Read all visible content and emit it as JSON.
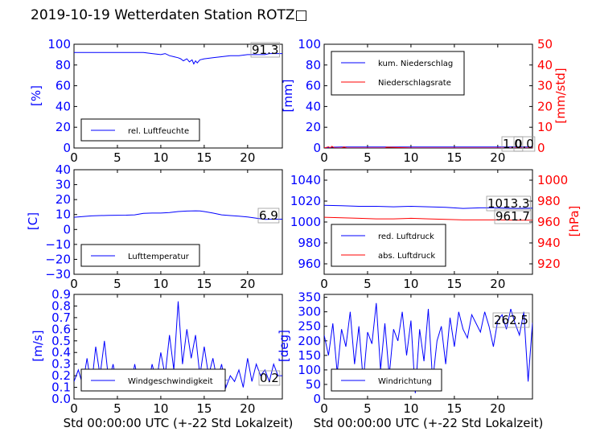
{
  "title": "2019-10-19 Wetterdaten Station ROTZ□",
  "colors": {
    "blue": "#0000ff",
    "red": "#ff0000",
    "black": "#000000"
  },
  "chart_data": [
    {
      "type": "line",
      "ylabel": "[%]",
      "xlim": [
        0,
        24
      ],
      "ylim": [
        0,
        100
      ],
      "xticks": [
        "0",
        "5",
        "10",
        "15",
        "20"
      ],
      "yticks": [
        "0",
        "20",
        "40",
        "60",
        "80",
        "100"
      ],
      "value_label": "91.3",
      "legend": "lower-left",
      "series": [
        {
          "name": "rel. Luftfeuchte",
          "color": "#0000ff",
          "x": [
            0,
            2,
            4,
            6,
            8,
            9,
            10,
            10.5,
            11,
            11.5,
            12,
            12.3,
            12.6,
            13,
            13.3,
            13.6,
            13.8,
            14,
            14.2,
            14.5,
            15,
            16,
            17,
            18,
            19,
            20,
            21,
            22,
            22.5,
            23,
            24
          ],
          "y": [
            92,
            92,
            92,
            92,
            92,
            91,
            90,
            91,
            89,
            88,
            87,
            86,
            84,
            86,
            83,
            85,
            81,
            84,
            82,
            85,
            86,
            87,
            88,
            89,
            89,
            90,
            90,
            90,
            91,
            91,
            91
          ]
        }
      ]
    },
    {
      "type": "line",
      "ylabel": "[mm]",
      "y2label": "[mm/std]",
      "xlim": [
        0,
        24
      ],
      "ylim": [
        0,
        100
      ],
      "y2lim": [
        0,
        50
      ],
      "xticks": [
        "0",
        "5",
        "10",
        "15",
        "20"
      ],
      "yticks": [
        "0",
        "20",
        "40",
        "60",
        "80",
        "100"
      ],
      "y2ticks": [
        "0",
        "10",
        "20",
        "30",
        "40",
        "50"
      ],
      "value_labels": [
        "1.0",
        "0.0"
      ],
      "legend": "top-left",
      "series": [
        {
          "name": "kum. Niederschlag",
          "color": "#0000ff",
          "x": [
            0,
            0.5,
            1,
            2,
            4,
            7,
            10,
            15,
            20,
            24
          ],
          "y": [
            0,
            0.5,
            0.8,
            0.9,
            1,
            1,
            1,
            1,
            1,
            1
          ]
        },
        {
          "name": "Niederschlagsrate",
          "color": "#ff0000",
          "x": [
            0,
            0.5,
            0.7,
            0.9,
            1.2,
            2,
            2.3,
            2.6,
            4,
            7,
            7.2,
            10,
            15,
            24
          ],
          "y": [
            0,
            0.6,
            0,
            0.8,
            0,
            0,
            0.5,
            0,
            0,
            0,
            0.4,
            0,
            0,
            0
          ]
        }
      ]
    },
    {
      "type": "line",
      "ylabel": "[C]",
      "xlim": [
        0,
        24
      ],
      "ylim": [
        -30,
        40
      ],
      "xticks": [
        "0",
        "5",
        "10",
        "15",
        "20"
      ],
      "yticks": [
        "−30",
        "−20",
        "−10",
        "0",
        "10",
        "20",
        "30",
        "40"
      ],
      "value_label": "6.9",
      "legend": "lower-left",
      "series": [
        {
          "name": "Lufttemperatur",
          "color": "#0000ff",
          "x": [
            0,
            1,
            2,
            3,
            4,
            5,
            6,
            7,
            8,
            9,
            10,
            11,
            12,
            13,
            14,
            14.5,
            15,
            16,
            17,
            18,
            19,
            20,
            21,
            22,
            23,
            24
          ],
          "y": [
            8.2,
            8.6,
            9.1,
            9.3,
            9.4,
            9.5,
            9.6,
            9.8,
            10.8,
            11,
            11,
            11.3,
            12,
            12.3,
            12.5,
            12.4,
            12,
            11,
            9.8,
            9.3,
            8.9,
            8.4,
            7.6,
            6.7,
            6.9,
            6.9
          ]
        }
      ]
    },
    {
      "type": "line",
      "ylabel": "",
      "y2label": "[hPa]",
      "xlim": [
        0,
        24
      ],
      "ylim": [
        950,
        1050
      ],
      "y2lim": [
        910,
        1010
      ],
      "xticks": [
        "0",
        "5",
        "10",
        "15",
        "20"
      ],
      "yticks": [
        "960",
        "980",
        "1000",
        "1020",
        "1040"
      ],
      "y2ticks": [
        "920",
        "940",
        "960",
        "980",
        "1000"
      ],
      "value_labels": [
        "1013.3",
        "961.7"
      ],
      "legend": "lower-left",
      "series": [
        {
          "name": "red. Luftdruck",
          "color": "#0000ff",
          "x": [
            0,
            2,
            4,
            6,
            8,
            10,
            12,
            14,
            16,
            18,
            20,
            22,
            24
          ],
          "y": [
            1016,
            1015.5,
            1015,
            1015,
            1014.5,
            1015,
            1014.5,
            1014,
            1013,
            1013.5,
            1013.5,
            1013,
            1013.3
          ]
        },
        {
          "name": "abs. Luftdruck",
          "color": "#ff0000",
          "x": [
            0,
            2,
            4,
            6,
            8,
            10,
            12,
            14,
            16,
            18,
            20,
            22,
            24
          ],
          "y": [
            964.5,
            964,
            963.5,
            963,
            963,
            963.5,
            963,
            962.5,
            962,
            962,
            962,
            961.8,
            961.7
          ]
        }
      ]
    },
    {
      "type": "line",
      "ylabel": "[m/s]",
      "xlabel": "Std 00:00:00 UTC (+-22 Std Lokalzeit)",
      "xlim": [
        0,
        24
      ],
      "ylim": [
        0,
        0.9
      ],
      "xticks": [
        "0",
        "5",
        "10",
        "15",
        "20"
      ],
      "yticks": [
        "0.0",
        "0.1",
        "0.2",
        "0.3",
        "0.4",
        "0.5",
        "0.6",
        "0.7",
        "0.8",
        "0.9"
      ],
      "value_label": "0.2",
      "legend": "lower-left",
      "series": [
        {
          "name": "Windgeschwindigkeit",
          "color": "#0000ff",
          "x": [
            0,
            0.5,
            1,
            1.5,
            2,
            2.5,
            3,
            3.5,
            4,
            4.5,
            5,
            5.5,
            6,
            6.5,
            7,
            7.5,
            8,
            8.5,
            9,
            9.5,
            10,
            10.5,
            11,
            11.5,
            12,
            12.5,
            13,
            13.5,
            14,
            14.5,
            15,
            15.5,
            16,
            16.5,
            17,
            17.5,
            18,
            18.5,
            19,
            19.5,
            20,
            20.5,
            21,
            21.5,
            22,
            22.5,
            23,
            23.5,
            24
          ],
          "y": [
            0.15,
            0.25,
            0.12,
            0.35,
            0.1,
            0.45,
            0.2,
            0.5,
            0.15,
            0.3,
            0.1,
            0.2,
            0.25,
            0.08,
            0.3,
            0.12,
            0.2,
            0.1,
            0.3,
            0.15,
            0.4,
            0.2,
            0.55,
            0.25,
            0.84,
            0.3,
            0.6,
            0.35,
            0.55,
            0.2,
            0.45,
            0.2,
            0.35,
            0.15,
            0.3,
            0.1,
            0.2,
            0.15,
            0.25,
            0.1,
            0.35,
            0.15,
            0.3,
            0.2,
            0.25,
            0.15,
            0.3,
            0.2,
            0.2
          ]
        },
        {
          "name": "",
          "color": "#8080ff",
          "x": [
            1,
            2,
            3,
            4,
            5,
            6,
            7,
            8,
            9,
            10,
            11,
            12,
            13,
            14,
            15,
            16,
            17,
            18
          ],
          "y": [
            0.15,
            0.22,
            0.12,
            0.2,
            0.1,
            0.18,
            0.15,
            0.12,
            0.2,
            0.16,
            0.1,
            0.22,
            0.14,
            0.18,
            0.12,
            0.2,
            0.15,
            0.17
          ]
        }
      ]
    },
    {
      "type": "line",
      "ylabel": "[deg]",
      "xlabel": "Std 00:00:00 UTC (+-22 Std Lokalzeit)",
      "xlim": [
        0,
        24
      ],
      "ylim": [
        0,
        360
      ],
      "xticks": [
        "0",
        "5",
        "10",
        "15",
        "20"
      ],
      "yticks": [
        "0",
        "50",
        "100",
        "150",
        "200",
        "250",
        "300",
        "350"
      ],
      "value_label": "262.5",
      "legend": "lower-left",
      "series": [
        {
          "name": "Windrichtung",
          "color": "#0000ff",
          "x": [
            0,
            0.5,
            1,
            1.5,
            2,
            2.5,
            3,
            3.5,
            4,
            4.5,
            5,
            5.5,
            6,
            6.5,
            7,
            7.5,
            8,
            8.5,
            9,
            9.5,
            10,
            10.5,
            11,
            11.5,
            12,
            12.5,
            13,
            13.5,
            14,
            14.5,
            15,
            15.5,
            16,
            16.5,
            17,
            17.5,
            18,
            18.5,
            19,
            19.5,
            20,
            20.5,
            21,
            21.5,
            22,
            22.5,
            23,
            23.5,
            24
          ],
          "y": [
            220,
            150,
            260,
            90,
            240,
            180,
            300,
            120,
            250,
            60,
            230,
            190,
            330,
            100,
            260,
            80,
            240,
            200,
            300,
            150,
            270,
            20,
            240,
            130,
            310,
            60,
            200,
            250,
            120,
            280,
            180,
            300,
            240,
            210,
            290,
            260,
            230,
            300,
            250,
            180,
            270,
            290,
            240,
            310,
            260,
            220,
            300,
            60,
            262
          ]
        }
      ]
    }
  ]
}
